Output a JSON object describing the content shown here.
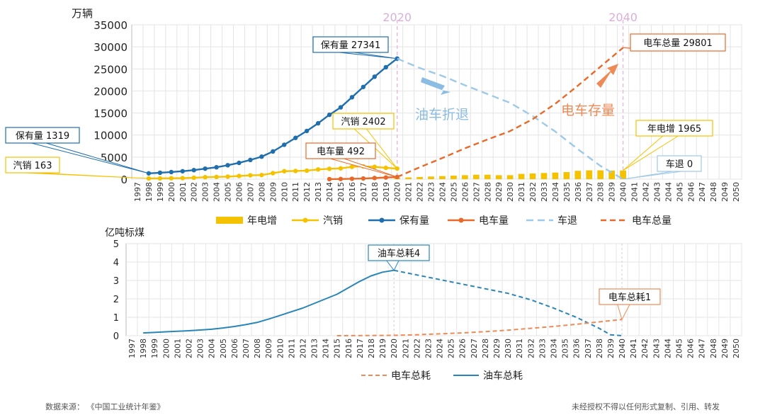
{
  "chart_data": [
    {
      "type": "bar-line-combo",
      "ylabel": "万辆",
      "ylim": [
        0,
        35000
      ],
      "yticks": [
        "0",
        "5000",
        "10000",
        "15000",
        "20000",
        "25000",
        "30000",
        "35000"
      ],
      "x_years": [
        "1997",
        "1998",
        "1999",
        "2000",
        "2001",
        "2002",
        "2003",
        "2004",
        "2005",
        "2006",
        "2007",
        "2008",
        "2009",
        "2010",
        "2011",
        "2012",
        "2013",
        "2014",
        "2015",
        "2016",
        "2017",
        "2018",
        "2019",
        "2020",
        "2021",
        "2022",
        "2023",
        "2024",
        "2025",
        "2026",
        "2027",
        "2028",
        "2029",
        "2030",
        "2031",
        "2032",
        "2033",
        "2034",
        "2035",
        "2036",
        "2037",
        "2038",
        "2039",
        "2040",
        "2041",
        "2042",
        "2043",
        "2044",
        "2045",
        "2046",
        "2047",
        "2048",
        "2049",
        "2050"
      ],
      "marker_years": [
        {
          "year": 2020,
          "label": "2020"
        },
        {
          "year": 2040,
          "label": "2040"
        }
      ],
      "series": [
        {
          "name": "年电增",
          "type": "bar",
          "color": "#F5C200",
          "x": [
            2020,
            2021,
            2022,
            2023,
            2024,
            2025,
            2026,
            2027,
            2028,
            2029,
            2030,
            2031,
            2032,
            2033,
            2034,
            2035,
            2036,
            2037,
            2038,
            2039,
            2040
          ],
          "values": [
            300,
            400,
            500,
            600,
            700,
            800,
            900,
            1000,
            1000,
            900,
            900,
            1200,
            1300,
            1400,
            1500,
            1600,
            1900,
            2000,
            2000,
            1950,
            1965
          ]
        },
        {
          "name": "汽销",
          "type": "line",
          "color": "#F5C200",
          "marker": true,
          "dash": "",
          "x": [
            1998,
            1999,
            2000,
            2001,
            2002,
            2003,
            2004,
            2005,
            2006,
            2007,
            2008,
            2009,
            2010,
            2011,
            2012,
            2013,
            2014,
            2015,
            2016,
            2017,
            2018,
            2019,
            2020
          ],
          "values": [
            163,
            183,
            209,
            237,
            325,
            444,
            507,
            576,
            722,
            880,
            938,
            1364,
            1806,
            1850,
            1930,
            2200,
            2350,
            2450,
            2800,
            2900,
            2800,
            2570,
            2402
          ]
        },
        {
          "name": "保有量",
          "type": "line",
          "color": "#1F6FAE",
          "marker": true,
          "dash": "",
          "x": [
            1998,
            1999,
            2000,
            2001,
            2002,
            2003,
            2004,
            2005,
            2006,
            2007,
            2008,
            2009,
            2010,
            2011,
            2012,
            2013,
            2014,
            2015,
            2016,
            2017,
            2018,
            2019,
            2020
          ],
          "values": [
            1319,
            1453,
            1609,
            1802,
            2053,
            2383,
            2694,
            3160,
            3697,
            4358,
            5100,
            6281,
            7802,
            9356,
            10933,
            12670,
            14598,
            16284,
            18575,
            20907,
            23231,
            25376,
            27341
          ]
        },
        {
          "name": "电车量",
          "type": "line",
          "color": "#E86A2A",
          "marker": true,
          "dash": "",
          "x": [
            2014,
            2015,
            2016,
            2017,
            2018,
            2019,
            2020
          ],
          "values": [
            12,
            42,
            91,
            153,
            261,
            381,
            492
          ]
        },
        {
          "name": "车退",
          "type": "line",
          "color": "#9EC9E8",
          "marker": false,
          "dash": "10,6",
          "x": [
            2020,
            2022,
            2024,
            2026,
            2028,
            2030,
            2032,
            2034,
            2036,
            2038,
            2040
          ],
          "values": [
            27341,
            25200,
            23400,
            21300,
            19300,
            17300,
            14300,
            10800,
            6800,
            3000,
            0
          ]
        },
        {
          "name": "电车总量",
          "type": "line",
          "color": "#E86A2A",
          "marker": false,
          "dash": "8,5",
          "x": [
            2020,
            2022,
            2024,
            2026,
            2028,
            2030,
            2032,
            2034,
            2036,
            2038,
            2040
          ],
          "values": [
            492,
            2700,
            4800,
            7000,
            9000,
            10900,
            13600,
            17100,
            21200,
            25500,
            29801
          ]
        }
      ],
      "callouts": [
        {
          "text": "保有量 27341",
          "color": "#1F6FAE",
          "x": 2020,
          "y": 27341
        },
        {
          "text": "保有量 1319",
          "color": "#1F6FAE",
          "x": 1998,
          "y": 1319
        },
        {
          "text": "汽销 163",
          "color": "#F5C200",
          "x": 1998,
          "y": 163
        },
        {
          "text": "汽销 2402",
          "color": "#F5C200",
          "x": 2020,
          "y": 2402
        },
        {
          "text": "电车量 492",
          "color": "#E86A2A",
          "x": 2020,
          "y": 492
        },
        {
          "text": "电车总量 29801",
          "color": "#E86A2A",
          "x": 2040,
          "y": 29801
        },
        {
          "text": "年电增 1965",
          "color": "#F5C200",
          "x": 2040,
          "y": 1965
        },
        {
          "text": "车退 0",
          "color": "#9EC9E8",
          "x": 2040,
          "y": 0
        }
      ],
      "annotations": [
        {
          "text": "油车折退",
          "color": "#8BBDE3"
        },
        {
          "text": "电车存量",
          "color": "#EE8A55"
        }
      ],
      "legend": [
        "年电增",
        "汽销",
        "保有量",
        "电车量",
        "车退",
        "电车总量"
      ],
      "legend_position": "bottom",
      "grid": true
    },
    {
      "type": "line",
      "ylabel": "亿吨标煤",
      "ylim": [
        0,
        5
      ],
      "yticks": [
        "0",
        "1",
        "2",
        "3",
        "4",
        "5"
      ],
      "x_years": [
        "1997",
        "1998",
        "1999",
        "2000",
        "2001",
        "2002",
        "2003",
        "2004",
        "2005",
        "2006",
        "2007",
        "2008",
        "2009",
        "2010",
        "2011",
        "2012",
        "2013",
        "2014",
        "2015",
        "2016",
        "2017",
        "2018",
        "2019",
        "2020",
        "2021",
        "2022",
        "2023",
        "2024",
        "2025",
        "2026",
        "2027",
        "2028",
        "2029",
        "2030",
        "2031",
        "2032",
        "2033",
        "2034",
        "2035",
        "2036",
        "2037",
        "2038",
        "2039",
        "2040",
        "2041",
        "2042",
        "2043",
        "2044",
        "2045",
        "2046",
        "2047",
        "2048",
        "2049",
        "2050"
      ],
      "series": [
        {
          "name": "油车总耗",
          "type": "line",
          "color": "#2A86B8",
          "dash": "",
          "x": [
            1998,
            1999,
            2000,
            2001,
            2002,
            2003,
            2004,
            2005,
            2006,
            2007,
            2008,
            2009,
            2010,
            2011,
            2012,
            2013,
            2014,
            2015,
            2016,
            2017,
            2018,
            2019,
            2020
          ],
          "values": [
            0.15,
            0.18,
            0.21,
            0.24,
            0.27,
            0.31,
            0.35,
            0.42,
            0.5,
            0.6,
            0.72,
            0.9,
            1.1,
            1.3,
            1.5,
            1.75,
            2.0,
            2.25,
            2.6,
            2.95,
            3.25,
            3.45,
            3.55
          ]
        },
        {
          "name": "油车总耗",
          "type": "line",
          "color": "#2A86B8",
          "dash": "6,4",
          "x": [
            2020,
            2022,
            2024,
            2026,
            2028,
            2030,
            2032,
            2034,
            2036,
            2038,
            2039,
            2040
          ],
          "values": [
            3.55,
            3.3,
            3.05,
            2.8,
            2.55,
            2.3,
            1.95,
            1.5,
            1.0,
            0.4,
            0.05,
            0.0
          ]
        },
        {
          "name": "电车总耗",
          "type": "line",
          "color": "#EE8A55",
          "dash": "6,4",
          "x": [
            2015,
            2018,
            2020,
            2022,
            2024,
            2026,
            2028,
            2030,
            2032,
            2034,
            2036,
            2038,
            2040
          ],
          "values": [
            0.0,
            0.01,
            0.02,
            0.05,
            0.1,
            0.15,
            0.22,
            0.3,
            0.4,
            0.5,
            0.62,
            0.75,
            0.88
          ]
        }
      ],
      "callouts": [
        {
          "text": "油车总耗4",
          "color": "#2A86B8",
          "x": 2020,
          "y": 3.55
        },
        {
          "text": "电车总耗1",
          "color": "#EE8A55",
          "x": 2040,
          "y": 0.88
        }
      ],
      "legend": [
        "电车总耗",
        "油车总耗"
      ],
      "legend_position": "bottom",
      "grid": true
    }
  ],
  "footer": {
    "source": "数据来源： 《中国工业统计年鉴》",
    "copyright": "未经授权不得以任何形式复制、引用、转发"
  }
}
